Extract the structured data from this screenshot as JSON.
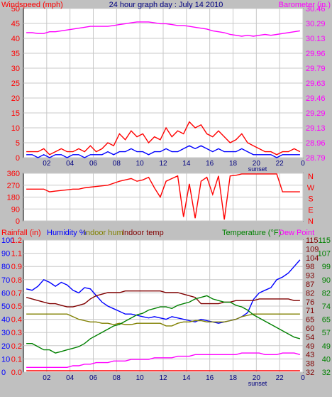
{
  "chart_data": [
    {
      "type": "line",
      "title": "24 hour graph day : July 14 2010",
      "left_axis_label": "Windspeed (mph)",
      "right_axis_label": "Barometer (in.)",
      "x_ticks": [
        "02",
        "04",
        "06",
        "08",
        "10",
        "12",
        "14",
        "16",
        "18",
        "20",
        "22",
        "0"
      ],
      "sunset_label": "sunset",
      "sunset_hour": 20.1,
      "left_ticks": [
        0,
        5,
        10,
        15,
        20,
        25,
        30,
        35,
        40,
        45,
        50
      ],
      "ylim_left": [
        0,
        50
      ],
      "right_ticks": [
        "28.79",
        "28.96",
        "29.13",
        "29.29",
        "29.46",
        "29.63",
        "29.79",
        "29.96",
        "30.13",
        "30.29",
        "30.46"
      ],
      "ylim_right": [
        28.79,
        30.46
      ],
      "grid": true,
      "series": [
        {
          "axis": "right",
          "color": "#ff00ff",
          "values": [
            30.19,
            30.19,
            30.18,
            30.18,
            30.2,
            30.2,
            30.21,
            30.22,
            30.23,
            30.24,
            30.25,
            30.26,
            30.26,
            30.26,
            30.26,
            30.27,
            30.28,
            30.29,
            30.3,
            30.31,
            30.31,
            30.31,
            30.3,
            30.29,
            30.29,
            30.28,
            30.27,
            30.27,
            30.26,
            30.25,
            30.24,
            30.23,
            30.21,
            30.2,
            30.19,
            30.17,
            30.16,
            30.15,
            30.16,
            30.15,
            30.16,
            30.17,
            30.16,
            30.17,
            30.18,
            30.19,
            30.2,
            30.21
          ]
        },
        {
          "axis": "left",
          "color": "#ff0000",
          "values": [
            2,
            2,
            2,
            3,
            1,
            2,
            3,
            2,
            2,
            3,
            2,
            4,
            2,
            3,
            5,
            4,
            8,
            6,
            9,
            7,
            8,
            5,
            7,
            6,
            10,
            7,
            9,
            8,
            12,
            10,
            11,
            8,
            7,
            9,
            7,
            5,
            6,
            8,
            5,
            4,
            3,
            2,
            2,
            1,
            2,
            2,
            3,
            2
          ]
        },
        {
          "axis": "left",
          "color": "#0000ff",
          "values": [
            1,
            1,
            0,
            1,
            0,
            1,
            1,
            0,
            1,
            1,
            0,
            1,
            1,
            1,
            2,
            1,
            2,
            2,
            3,
            2,
            2,
            1,
            2,
            2,
            3,
            2,
            2,
            3,
            4,
            3,
            4,
            3,
            2,
            3,
            2,
            2,
            2,
            3,
            2,
            1,
            1,
            1,
            1,
            0,
            1,
            1,
            1,
            1
          ]
        }
      ]
    },
    {
      "type": "line",
      "left_ticks": [
        0,
        90,
        180,
        270,
        360
      ],
      "ylim": [
        0,
        360
      ],
      "right_labels": [
        "N",
        "W",
        "S",
        "E",
        "N"
      ],
      "series": [
        {
          "color": "#ff0000",
          "name": "wind direction",
          "values": [
            240,
            240,
            240,
            240,
            220,
            225,
            230,
            235,
            240,
            240,
            250,
            255,
            260,
            265,
            270,
            285,
            300,
            310,
            320,
            300,
            310,
            330,
            250,
            180,
            300,
            320,
            340,
            30,
            280,
            20,
            300,
            330,
            200,
            340,
            10,
            340,
            345,
            355,
            355,
            355,
            355,
            355,
            355,
            355,
            220,
            220,
            220,
            220
          ]
        }
      ]
    },
    {
      "type": "line",
      "labels": {
        "rainfall": "Rainfall (in)",
        "humidity": "Humidity %",
        "indoor_hum": "Indoor hum",
        "indoor_temp": "Indoor temp",
        "temperature": "Temperature (°F)",
        "dew_point": "Dew Point"
      },
      "x_ticks": [
        "02",
        "04",
        "06",
        "08",
        "10",
        "12",
        "14",
        "16",
        "18",
        "20",
        "22",
        "0"
      ],
      "sunset_label": "sunset",
      "sunset_hour": 20.1,
      "humidity_ticks": [
        0,
        10,
        20,
        30,
        40,
        50,
        60,
        70,
        80,
        90,
        100
      ],
      "rain_ticks": [
        "0.0",
        "0.1",
        "0.2",
        "0.3",
        "0.4",
        "0.5",
        "0.7",
        "0.8",
        "0.9",
        "1.1",
        "1.2"
      ],
      "indoor_temp_ticks": [
        32,
        38,
        43,
        49,
        54,
        60,
        65,
        71,
        76,
        82,
        87,
        93,
        98,
        104,
        109,
        115
      ],
      "temp_ticks": [
        32,
        40,
        49,
        57,
        65,
        74,
        82,
        90,
        99,
        107,
        115
      ],
      "ylim_humidity": [
        0,
        100
      ],
      "grid": true,
      "series": [
        {
          "name": "humidity",
          "color": "#0000ff",
          "values": [
            63,
            62,
            65,
            70,
            68,
            65,
            68,
            66,
            62,
            60,
            64,
            63,
            58,
            53,
            50,
            48,
            46,
            44,
            44,
            43,
            42,
            41,
            42,
            41,
            40,
            42,
            41,
            40,
            39,
            38,
            40,
            39,
            38,
            37,
            38,
            39,
            40,
            42,
            45,
            55,
            60,
            62,
            64,
            70,
            72,
            75,
            80,
            85
          ]
        },
        {
          "name": "indoor_hum",
          "color": "#808000",
          "values": [
            44,
            44,
            44,
            44,
            44,
            44,
            44,
            44,
            42,
            40,
            39,
            38,
            38,
            37,
            37,
            36,
            37,
            36,
            36,
            37,
            37,
            37,
            37,
            37,
            35,
            35,
            37,
            38,
            38,
            39,
            39,
            38,
            38,
            38,
            38,
            39,
            40,
            42,
            43,
            44,
            44,
            44,
            44,
            44,
            44,
            44,
            44,
            44
          ]
        },
        {
          "name": "indoor_temp",
          "color": "#800000",
          "values": [
            79,
            78,
            77,
            76,
            75,
            75,
            74,
            73,
            73,
            74,
            75,
            78,
            80,
            81,
            82,
            82,
            82,
            83,
            83,
            83,
            83,
            83,
            83,
            83,
            82,
            82,
            82,
            81,
            80,
            79,
            75,
            75,
            75,
            75,
            76,
            76,
            77,
            77,
            77,
            77,
            78,
            78,
            78,
            78,
            78,
            78,
            77,
            77
          ]
        },
        {
          "name": "temperature",
          "color": "#008000",
          "values": [
            50,
            50,
            48,
            46,
            46,
            44,
            45,
            46,
            47,
            48,
            50,
            53,
            55,
            57,
            59,
            61,
            62,
            64,
            66,
            68,
            69,
            71,
            72,
            73,
            73,
            72,
            74,
            75,
            76,
            78,
            79,
            80,
            78,
            77,
            76,
            76,
            74,
            73,
            71,
            68,
            66,
            64,
            62,
            60,
            58,
            56,
            54,
            53
          ]
        },
        {
          "name": "dew_point",
          "color": "#ff00ff",
          "values": [
            35,
            35,
            35,
            35,
            35,
            35,
            35,
            35,
            36,
            36,
            37,
            37,
            38,
            38,
            38,
            39,
            39,
            39,
            40,
            40,
            40,
            40,
            41,
            41,
            41,
            41,
            42,
            42,
            42,
            43,
            43,
            43,
            43,
            43,
            43,
            43,
            43,
            44,
            44,
            44,
            44,
            43,
            43,
            43,
            44,
            44,
            44,
            43
          ]
        },
        {
          "name": "rainfall",
          "color": "#ff0000",
          "values": [
            0,
            0,
            0,
            0,
            0,
            0,
            0,
            0,
            0,
            0,
            0,
            0,
            0,
            0,
            0,
            0,
            0,
            0,
            0,
            0,
            0,
            0,
            0,
            0,
            0,
            0,
            0,
            0,
            0,
            0,
            0,
            0,
            0,
            0,
            0,
            0,
            0,
            0,
            0,
            0,
            0,
            0,
            0,
            0,
            0,
            0,
            0,
            0
          ]
        }
      ]
    }
  ]
}
